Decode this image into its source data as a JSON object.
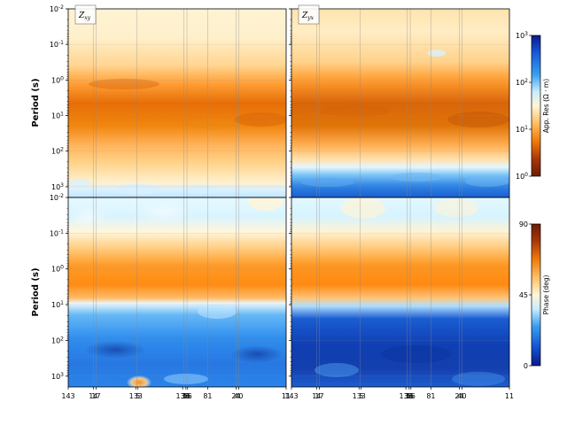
{
  "chart_data": {
    "type": "heatmap",
    "panels": [
      {
        "id": "xy-res",
        "label_main": "Z",
        "label_sub": "xy",
        "quantity": "resistivity"
      },
      {
        "id": "yx-res",
        "label_main": "Z",
        "label_sub": "yx",
        "quantity": "resistivity"
      },
      {
        "id": "xy-phase",
        "quantity": "phase"
      },
      {
        "id": "yx-phase",
        "quantity": "phase"
      }
    ],
    "ylabel": "Period (s)",
    "ylim": [
      0.01,
      2000
    ],
    "yscale": "log",
    "y_ticks": [
      {
        "value": 0.01,
        "base": "10",
        "exp": "-2"
      },
      {
        "value": 0.1,
        "base": "10",
        "exp": "-1"
      },
      {
        "value": 1,
        "base": "10",
        "exp": "0"
      },
      {
        "value": 10,
        "base": "10",
        "exp": "1"
      },
      {
        "value": 100,
        "base": "10",
        "exp": "2"
      },
      {
        "value": 1000,
        "base": "10",
        "exp": "3"
      }
    ],
    "x_station_labels": [
      {
        "pos": 0.0,
        "text": "143"
      },
      {
        "pos": 0.115,
        "text": "14"
      },
      {
        "pos": 0.128,
        "text": "17"
      },
      {
        "pos": 0.31,
        "text": "133"
      },
      {
        "pos": 0.32,
        "text": "5"
      },
      {
        "pos": 0.525,
        "text": "138"
      },
      {
        "pos": 0.54,
        "text": "36"
      },
      {
        "pos": 0.548,
        "text": "56"
      },
      {
        "pos": 0.64,
        "text": "81"
      },
      {
        "pos": 0.77,
        "text": "24"
      },
      {
        "pos": 0.782,
        "text": "40"
      },
      {
        "pos": 1.0,
        "text": "11"
      }
    ],
    "station_lines": [
      0.115,
      0.128,
      0.315,
      0.53,
      0.545,
      0.64,
      0.77,
      0.782
    ],
    "colorbars": [
      {
        "label": "App. Res (Ω · m)",
        "scale": "log",
        "range": [
          1,
          1000
        ],
        "ticks": [
          {
            "value": 1000,
            "base": "10",
            "exp": "3"
          },
          {
            "value": 100,
            "base": "10",
            "exp": "2"
          },
          {
            "value": 10,
            "base": "10",
            "exp": "1"
          },
          {
            "value": 1,
            "base": "10",
            "exp": "0"
          }
        ],
        "colors_top_to_bottom": [
          "#0a1a8a",
          "#1457d6",
          "#3aa0f0",
          "#c8ecff",
          "#fff6d8",
          "#ffc067",
          "#f07b0a",
          "#a8360a",
          "#6b1c07"
        ]
      },
      {
        "label": "Phase (deg)",
        "scale": "linear",
        "range": [
          0,
          90
        ],
        "ticks": [
          {
            "value": 90,
            "text": "90"
          },
          {
            "value": 45,
            "text": "45"
          },
          {
            "value": 0,
            "text": "0"
          }
        ],
        "colors_top_to_bottom": [
          "#6b1c07",
          "#a8360a",
          "#f07b0a",
          "#ffc067",
          "#fff6d8",
          "#c8ecff",
          "#3aa0f0",
          "#1457d6",
          "#0a1a8a"
        ]
      }
    ]
  }
}
